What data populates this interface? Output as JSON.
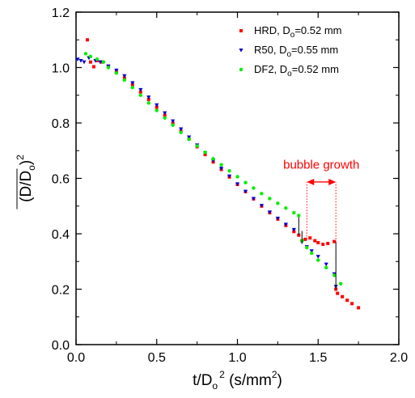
{
  "chart_data": {
    "type": "scatter",
    "title": "",
    "xlabel": {
      "base": "t/D",
      "sub": "o",
      "sup": "2",
      "unit_open": " (s/mm",
      "unit_sup": "2",
      "unit_close": ")"
    },
    "ylabel": {
      "open": "(D/D",
      "sub": "o",
      "close": ")",
      "sup": "2"
    },
    "xlim": [
      0.0,
      2.0
    ],
    "ylim": [
      0.0,
      1.2
    ],
    "x_ticks": [
      "0.0",
      "0.5",
      "1.0",
      "1.5",
      "2.0"
    ],
    "y_ticks": [
      "0.0",
      "0.2",
      "0.4",
      "0.6",
      "0.8",
      "1.0",
      "1.2"
    ],
    "x_tick_values": [
      0.0,
      0.5,
      1.0,
      1.5,
      2.0
    ],
    "y_tick_values": [
      0.0,
      0.2,
      0.4,
      0.6,
      0.8,
      1.0,
      1.2
    ],
    "legend_position": "top-right",
    "series": [
      {
        "name": "HRD",
        "legend": {
          "prefix": "HRD, D",
          "sub": "o",
          "suffix": "=0.52 mm"
        },
        "color": "#ff0000",
        "marker": "square",
        "points": [
          [
            0.07,
            1.1
          ],
          [
            0.09,
            1.02
          ],
          [
            0.11,
            1.003
          ],
          [
            0.13,
            1.025
          ],
          [
            0.16,
            1.02
          ],
          [
            0.2,
            1.005
          ],
          [
            0.25,
            0.985
          ],
          [
            0.3,
            0.962
          ],
          [
            0.35,
            0.938
          ],
          [
            0.4,
            0.912
          ],
          [
            0.45,
            0.885
          ],
          [
            0.5,
            0.857
          ],
          [
            0.55,
            0.828
          ],
          [
            0.6,
            0.799
          ],
          [
            0.65,
            0.77
          ],
          [
            0.7,
            0.742
          ],
          [
            0.75,
            0.714
          ],
          [
            0.8,
            0.686
          ],
          [
            0.85,
            0.659
          ],
          [
            0.9,
            0.632
          ],
          [
            0.95,
            0.605
          ],
          [
            1.0,
            0.578
          ],
          [
            1.05,
            0.552
          ],
          [
            1.1,
            0.526
          ],
          [
            1.15,
            0.5
          ],
          [
            1.2,
            0.476
          ],
          [
            1.25,
            0.453
          ],
          [
            1.3,
            0.43
          ],
          [
            1.35,
            0.408
          ],
          [
            1.38,
            0.395
          ],
          [
            1.4,
            0.375
          ],
          [
            1.42,
            0.38
          ],
          [
            1.45,
            0.385
          ],
          [
            1.48,
            0.375
          ],
          [
            1.5,
            0.368
          ],
          [
            1.53,
            0.362
          ],
          [
            1.56,
            0.365
          ],
          [
            1.6,
            0.372
          ],
          [
            1.61,
            0.2
          ],
          [
            1.62,
            0.185
          ],
          [
            1.65,
            0.173
          ],
          [
            1.68,
            0.16
          ],
          [
            1.71,
            0.148
          ],
          [
            1.75,
            0.133
          ]
        ]
      },
      {
        "name": "R50",
        "legend": {
          "prefix": "R50, D",
          "sub": "o",
          "suffix": "=0.55 mm"
        },
        "color": "#0000cc",
        "marker": "triangle-down",
        "points": [
          [
            0.01,
            1.03
          ],
          [
            0.03,
            1.025
          ],
          [
            0.05,
            1.02
          ],
          [
            0.08,
            1.035
          ],
          [
            0.12,
            1.025
          ],
          [
            0.15,
            1.02
          ],
          [
            0.2,
            1.005
          ],
          [
            0.25,
            0.99
          ],
          [
            0.3,
            0.97
          ],
          [
            0.35,
            0.945
          ],
          [
            0.4,
            0.92
          ],
          [
            0.45,
            0.893
          ],
          [
            0.5,
            0.865
          ],
          [
            0.55,
            0.836
          ],
          [
            0.6,
            0.807
          ],
          [
            0.65,
            0.778
          ],
          [
            0.7,
            0.749
          ],
          [
            0.75,
            0.72
          ],
          [
            0.8,
            0.692
          ],
          [
            0.85,
            0.664
          ],
          [
            0.9,
            0.636
          ],
          [
            0.95,
            0.608
          ],
          [
            1.0,
            0.58
          ],
          [
            1.05,
            0.553
          ],
          [
            1.1,
            0.527
          ],
          [
            1.15,
            0.502
          ],
          [
            1.2,
            0.478
          ],
          [
            1.25,
            0.456
          ],
          [
            1.3,
            0.434
          ],
          [
            1.35,
            0.415
          ],
          [
            1.4,
            0.37
          ],
          [
            1.43,
            0.353
          ],
          [
            1.46,
            0.338
          ],
          [
            1.5,
            0.318
          ],
          [
            1.55,
            0.29
          ],
          [
            1.6,
            0.255
          ],
          [
            1.61,
            0.21
          ]
        ]
      },
      {
        "name": "DF2",
        "legend": {
          "prefix": "DF2, D",
          "sub": "o",
          "suffix": "=0.52 mm"
        },
        "color": "#00ee00",
        "marker": "circle",
        "points": [
          [
            0.06,
            1.05
          ],
          [
            0.09,
            1.04
          ],
          [
            0.13,
            1.03
          ],
          [
            0.17,
            1.02
          ],
          [
            0.2,
            1.0
          ],
          [
            0.25,
            0.98
          ],
          [
            0.3,
            0.955
          ],
          [
            0.35,
            0.928
          ],
          [
            0.4,
            0.9
          ],
          [
            0.45,
            0.872
          ],
          [
            0.5,
            0.845
          ],
          [
            0.55,
            0.818
          ],
          [
            0.6,
            0.792
          ],
          [
            0.65,
            0.766
          ],
          [
            0.7,
            0.741
          ],
          [
            0.75,
            0.717
          ],
          [
            0.8,
            0.694
          ],
          [
            0.85,
            0.671
          ],
          [
            0.9,
            0.649
          ],
          [
            0.95,
            0.627
          ],
          [
            1.0,
            0.606
          ],
          [
            1.05,
            0.585
          ],
          [
            1.1,
            0.565
          ],
          [
            1.15,
            0.545
          ],
          [
            1.2,
            0.527
          ],
          [
            1.25,
            0.51
          ],
          [
            1.3,
            0.493
          ],
          [
            1.35,
            0.476
          ],
          [
            1.38,
            0.466
          ],
          [
            1.4,
            0.375
          ],
          [
            1.43,
            0.35
          ],
          [
            1.46,
            0.33
          ],
          [
            1.5,
            0.305
          ],
          [
            1.55,
            0.278
          ],
          [
            1.6,
            0.25
          ],
          [
            1.64,
            0.22
          ]
        ]
      }
    ],
    "annotations": {
      "label": "bubble growth",
      "label_pos": [
        1.52,
        0.65
      ],
      "arrow_from": [
        1.43,
        0.587
      ],
      "arrow_to": [
        1.61,
        0.587
      ],
      "dotted_lines": [
        {
          "x": 1.43,
          "y0": 0.38,
          "y1": 0.587
        },
        {
          "x": 1.61,
          "y0": 0.37,
          "y1": 0.587
        }
      ],
      "jump_lines": [
        {
          "x": 1.38,
          "y0": 0.46,
          "y1": 0.395
        },
        {
          "x": 1.4,
          "y0": 0.41,
          "y1": 0.37
        },
        {
          "x": 1.61,
          "y0": 0.37,
          "y1": 0.2
        }
      ]
    }
  }
}
